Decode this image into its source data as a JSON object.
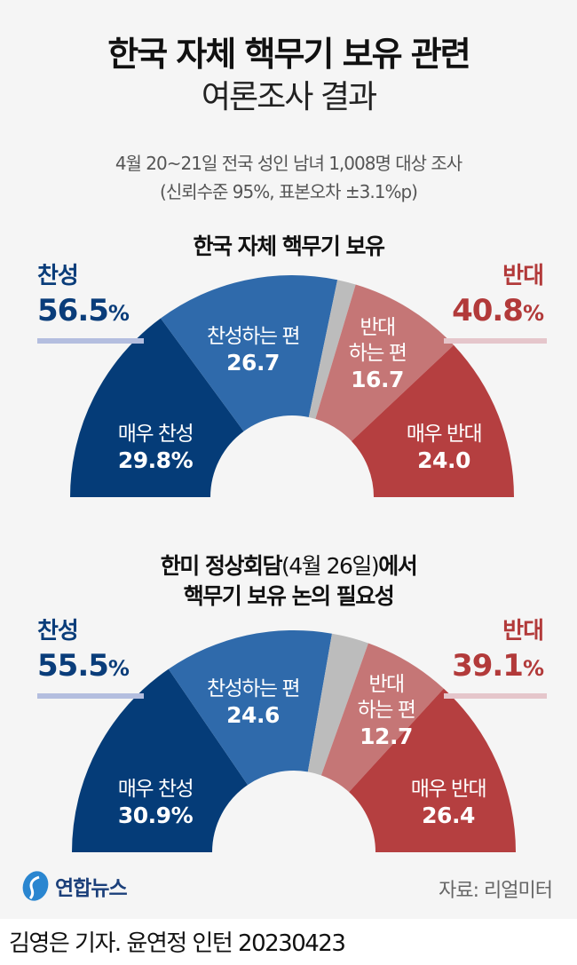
{
  "header": {
    "title_line1": "한국 자체 핵무기 보유 관련",
    "title_line2": "여론조사 결과",
    "subtitle_line1": "4월 20~21일 전국 성인 남녀 1,008명 대상 조사",
    "subtitle_line2": "(신뢰수준 95%, 표본오차 ±3.1%p)"
  },
  "colors": {
    "strongly_favor": "#053c78",
    "somewhat_favor": "#2f6aab",
    "no_answer": "#bcbcbc",
    "somewhat_oppose": "#c57676",
    "strongly_oppose": "#b53f40",
    "favor_bar": "#b4bedf",
    "oppose_bar": "#e5c6cb"
  },
  "chart_data": [
    {
      "type": "pie",
      "shape": "half-donut",
      "title": "한국 자체 핵무기 보유",
      "favor_label": "찬성",
      "favor_total": "56.5",
      "oppose_label": "반대",
      "oppose_total": "40.8",
      "unit": "%",
      "slices": [
        {
          "label": "매우 찬성",
          "value": 29.8,
          "display": "29.8",
          "unit": "%",
          "color_key": "strongly_favor"
        },
        {
          "label": "찬성하는 편",
          "value": 26.7,
          "display": "26.7",
          "color_key": "somewhat_favor"
        },
        {
          "label": "",
          "value": 2.7,
          "color_key": "no_answer"
        },
        {
          "label_line1": "반대",
          "label_line2": "하는 편",
          "value": 16.7,
          "display": "16.7",
          "color_key": "somewhat_oppose"
        },
        {
          "label": "매우 반대",
          "value": 24.0,
          "display": "24.0",
          "color_key": "strongly_oppose"
        }
      ]
    },
    {
      "type": "pie",
      "shape": "half-donut",
      "title_line1_bold_a": "한미 정상회담",
      "title_line1_paren": "(4월 26일)",
      "title_line1_bold_b": "에서",
      "title_line2": "핵무기 보유 논의 필요성",
      "favor_label": "찬성",
      "favor_total": "55.5",
      "oppose_label": "반대",
      "oppose_total": "39.1",
      "unit": "%",
      "slices": [
        {
          "label": "매우 찬성",
          "value": 30.9,
          "display": "30.9",
          "unit": "%",
          "color_key": "strongly_favor"
        },
        {
          "label": "찬성하는 편",
          "value": 24.6,
          "display": "24.6",
          "color_key": "somewhat_favor"
        },
        {
          "label": "",
          "value": 5.4,
          "color_key": "no_answer"
        },
        {
          "label_line1": "반대",
          "label_line2": "하는 편",
          "value": 12.7,
          "display": "12.7",
          "color_key": "somewhat_oppose"
        },
        {
          "label": "매우 반대",
          "value": 26.4,
          "display": "26.4",
          "color_key": "strongly_oppose"
        }
      ]
    }
  ],
  "footer": {
    "logo": "연합뉴스",
    "source": "자료: 리얼미터",
    "credit": "김영은 기자. 윤연정 인턴  20230423"
  }
}
